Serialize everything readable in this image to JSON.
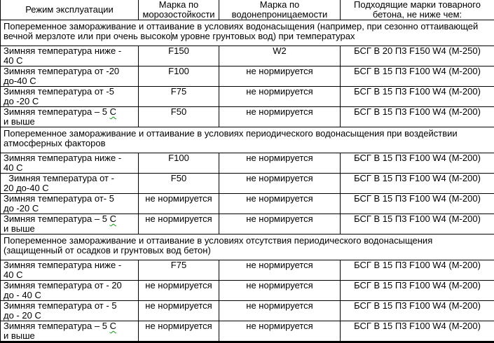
{
  "colors": {
    "border": "#000000",
    "text": "#000000",
    "squiggle": "#0f9a0f",
    "caret": "#2a2a2a",
    "background": "#ffffff"
  },
  "table": {
    "headers": {
      "mode": "Режим эксплуатации",
      "frost": "Марка по морозостойкости",
      "water": "Марка по водонепроницаемости",
      "concrete": "Подходящие марки товарного бетона, не ниже чем:"
    },
    "sections": [
      {
        "title_pre": "Попеременное замораживание и оттаивание в условиях водонасыщения (например, при сезонно оттаивающей вечной мерзлоте или при очень высоко",
        "title_post": "м уровне грунтовых вод) при температурах",
        "rows": [
          {
            "l1": "Зимняя температура ниже -",
            "l1m": "",
            "l2": "40 С",
            "l2m": "",
            "frost": "F150",
            "water": "W2",
            "concrete": "БСГ В 20 П3 F150 W4 (М-250)"
          },
          {
            "l1": "Зимняя температура от -20",
            "l1m": "",
            "l2": "до-40 ",
            "l2m": "С",
            "frost": "F100",
            "water": "не нормируется",
            "concrete": "БСГ В 15 П3 F100 W4 (М-200)"
          },
          {
            "l1": "Зимняя температура от -5",
            "l1m": "",
            "l2": "до -20 ",
            "l2m": "С",
            "frost": "F75",
            "water": "не нормируется",
            "concrete": "БСГ В 15 П3 F100 W4 (М-200)"
          },
          {
            "l1": "Зимняя температура – 5 ",
            "l1m": "С",
            "l2": "и выше",
            "l2m": "",
            "frost": "F50",
            "water": "не нормируется",
            "concrete": "БСГ В 15 П3 F100 W4 (М-200)"
          }
        ]
      },
      {
        "title_pre": "Попеременное замораживание и оттаивание в условиях периодического водонасыщения при воздействии атмосферных факторов",
        "title_post": "",
        "rows": [
          {
            "l1": "Зимняя температура ниже -",
            "l1m": "",
            "l2": "40 ",
            "l2m": "С",
            "frost": "F100",
            "water": "не нормируется",
            "concrete": "БСГ В 15 П3 F100 W4 (М-200)"
          },
          {
            "l1": "  Зимняя температура от -",
            "l1m": "",
            "l2": "20 до-40 ",
            "l2m": "С",
            "frost": "F50",
            "water": "не нормируется",
            "concrete": "БСГ В 15 П3 F100 W4 (М-200)"
          },
          {
            "l1": "Зимняя температура от- 5",
            "l1m": "",
            "l2": "до -20 ",
            "l2m": "С",
            "frost": "не нормируется",
            "water": "не нормируется",
            "concrete": "БСГ В 15 П3 F100 W4 (М-200)"
          },
          {
            "l1": "Зимняя температура – 5 ",
            "l1m": "С",
            "l2": "и выше",
            "l2m": "",
            "frost": "не нормируется",
            "water": "не нормируется",
            "concrete": "БСГ В 15 П3 F100 W4 (М-200)"
          }
        ]
      },
      {
        "title_pre": "Попеременное замораживание и оттаивание в условиях отсутствия периодического водонасыщения (защищенный от осадков и грунтовых вод бетон)",
        "title_post": "",
        "rows": [
          {
            "l1": "Зимняя температура ниже -",
            "l1m": "",
            "l2": "40 ",
            "l2m": "С",
            "frost": "F75",
            "water": "не нормируется",
            "concrete": "БСГ В 15 П3 F100 W4 (М-200)"
          },
          {
            "l1": "Зимняя температура от - 20",
            "l1m": "",
            "l2": "до - 40 ",
            "l2m": "С",
            "frost": "не нормируется",
            "water": "не нормируется",
            "concrete": "БСГ В 15 П3 F100 W4 (М-200)"
          },
          {
            "l1": "Зимняя температура от - 5",
            "l1m": "",
            "l2": "до - 20 ",
            "l2m": "С",
            "frost": "не нормируется",
            "water": "не нормируется",
            "concrete": "БСГ В 15 П3 F100 W4 (М-200)"
          },
          {
            "l1": "Зимняя температура – 5 ",
            "l1m": "С",
            "l2": "и выше",
            "l2m": "",
            "frost": "не нормируется",
            "water": "не нормируется",
            "concrete": "БСГ В 15 П3 F100 W4 (М-200)"
          }
        ]
      }
    ]
  }
}
